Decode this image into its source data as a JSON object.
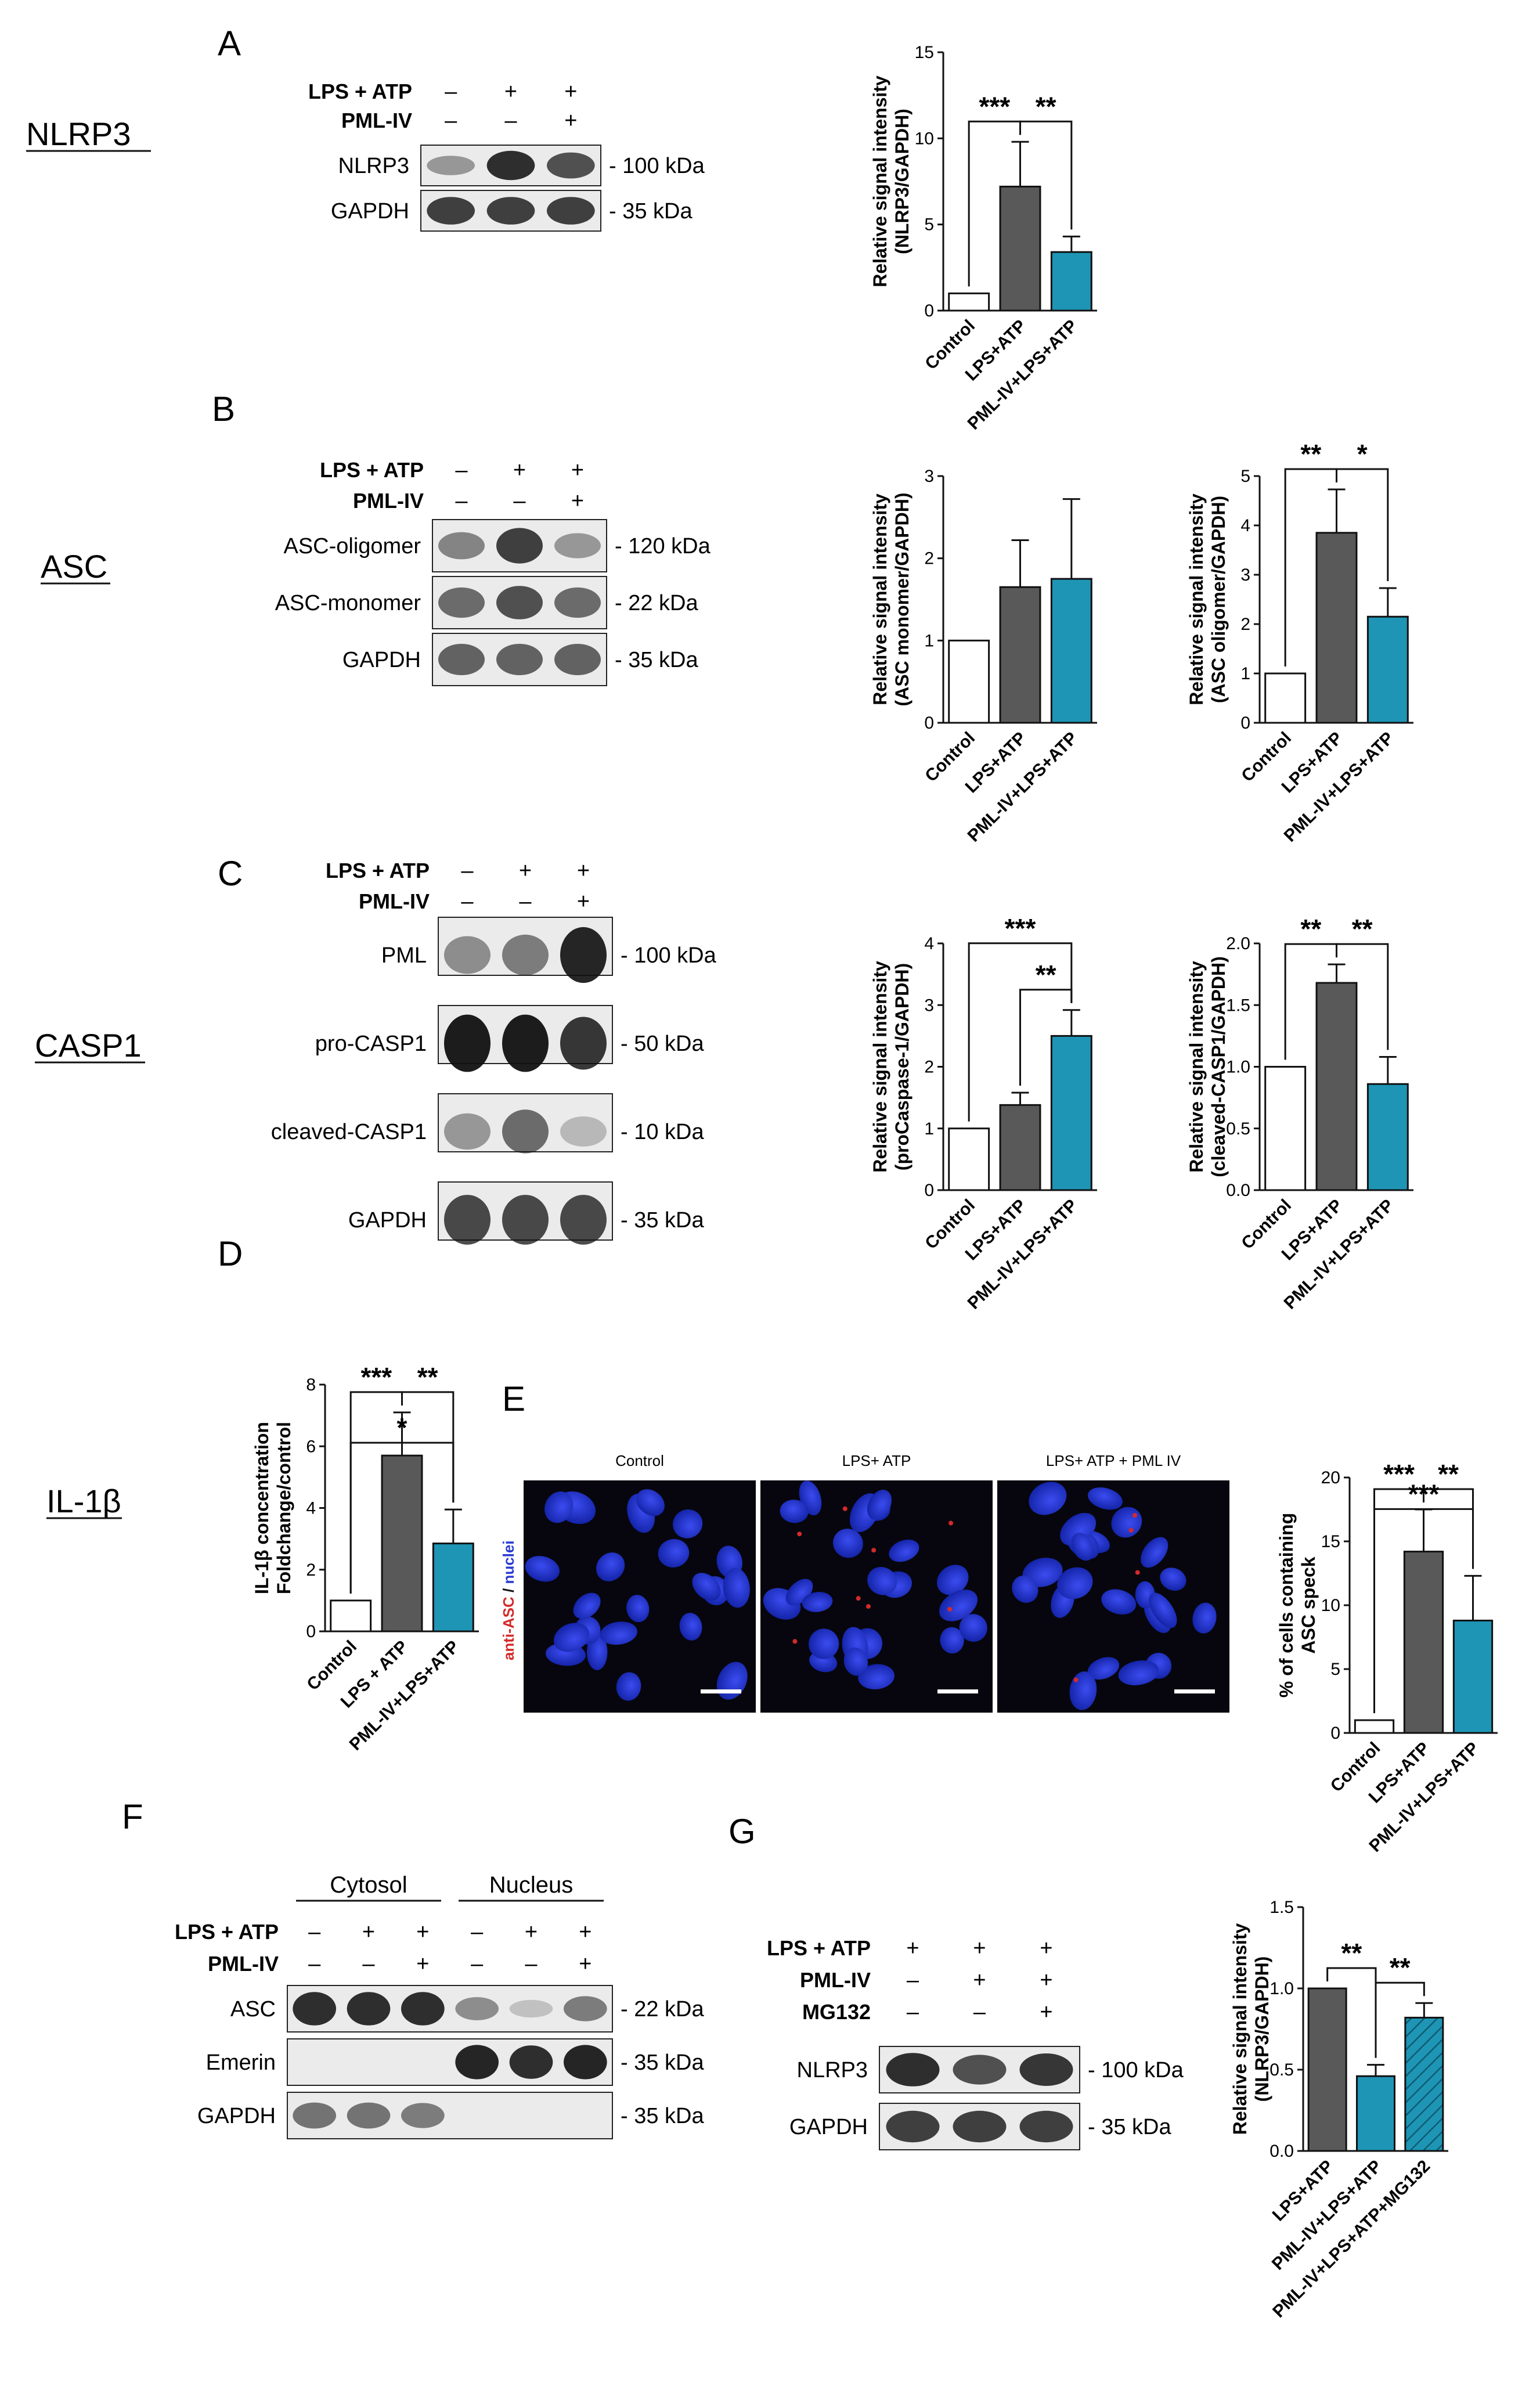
{
  "figure": {
    "row_labels": [
      {
        "key": "nlrp3",
        "text": "NLRP3"
      },
      {
        "key": "asc",
        "text": "ASC"
      },
      {
        "key": "casp1",
        "text": "CASP1"
      },
      {
        "key": "il1b",
        "text": "IL-1β"
      }
    ],
    "panel_letters": [
      "A",
      "B",
      "C",
      "D",
      "E",
      "F",
      "G"
    ]
  },
  "blots": {
    "A": {
      "conditions": [
        {
          "label": "LPS + ATP",
          "marks": [
            "–",
            "+",
            "+"
          ]
        },
        {
          "label": "PML-IV",
          "marks": [
            "–",
            "–",
            "+"
          ]
        }
      ],
      "bands": [
        {
          "protein": "NLRP3",
          "size": "- 100 kDa"
        },
        {
          "protein": "GAPDH",
          "size": "-  35 kDa"
        }
      ]
    },
    "B": {
      "conditions": [
        {
          "label": "LPS + ATP",
          "marks": [
            "–",
            "+",
            "+"
          ]
        },
        {
          "label": "PML-IV",
          "marks": [
            "–",
            "–",
            "+"
          ]
        }
      ],
      "bands": [
        {
          "protein": "ASC-oligomer",
          "size": "- 120 kDa"
        },
        {
          "protein": "ASC-monomer",
          "size": "-  22 kDa"
        },
        {
          "protein": "GAPDH",
          "size": "-  35 kDa"
        }
      ]
    },
    "C": {
      "conditions": [
        {
          "label": "LPS + ATP",
          "marks": [
            "–",
            "+",
            "+"
          ]
        },
        {
          "label": "PML-IV",
          "marks": [
            "–",
            "–",
            "+"
          ]
        }
      ],
      "bands": [
        {
          "protein": "PML",
          "size": "- 100 kDa"
        },
        {
          "protein": "pro-CASP1",
          "size": "- 50 kDa"
        },
        {
          "protein": "cleaved-CASP1",
          "size": "- 10 kDa"
        },
        {
          "protein": "GAPDH",
          "size": "- 35 kDa"
        }
      ]
    },
    "F": {
      "groups": [
        "Cytosol",
        "Nucleus"
      ],
      "conditions": [
        {
          "label": "LPS + ATP",
          "marks": [
            "–",
            "+",
            "+",
            "–",
            "+",
            "+"
          ]
        },
        {
          "label": "PML-IV",
          "marks": [
            "–",
            "–",
            "+",
            "–",
            "–",
            "+"
          ]
        }
      ],
      "bands": [
        {
          "protein": "ASC",
          "size": "- 22 kDa"
        },
        {
          "protein": "Emerin",
          "size": "- 35 kDa"
        },
        {
          "protein": "GAPDH",
          "size": "- 35 kDa"
        }
      ]
    },
    "G": {
      "conditions": [
        {
          "label": "LPS + ATP",
          "marks": [
            "+",
            "+",
            "+"
          ]
        },
        {
          "label": "PML-IV",
          "marks": [
            "–",
            "+",
            "+"
          ]
        },
        {
          "label": "MG132",
          "marks": [
            "–",
            "–",
            "+"
          ]
        }
      ],
      "bands": [
        {
          "protein": "NLRP3",
          "size": "- 100 kDa"
        },
        {
          "protein": "GAPDH",
          "size": "-  35 kDa"
        }
      ]
    }
  },
  "microscopy": {
    "titles": [
      "Control",
      "LPS+ ATP",
      "LPS+ ATP + PML IV"
    ],
    "stain_label_red": "anti-ASC",
    "stain_label_sep": " / ",
    "stain_label_blue": "nuclei"
  },
  "colors": {
    "control": "#ffffff",
    "lps_atp": "#595959",
    "pml_iv": "#1f95b5",
    "mg132_hatch": "#1f95b5",
    "stain_red": "#d42a2a",
    "stain_blue": "#2a3bd4"
  },
  "chart_data": [
    {
      "panel": "A",
      "type": "bar",
      "ylabel": "Relative signal intensity\n(NLRP3/GAPDH)",
      "categories": [
        "Control",
        "LPS+ATP",
        "PML-IV+LPS+ATP"
      ],
      "values": [
        1.0,
        7.2,
        3.4
      ],
      "errors": [
        0,
        2.6,
        0.9
      ],
      "ylim": [
        0,
        15
      ],
      "yticks": [
        0,
        5,
        10,
        15
      ],
      "significance": [
        {
          "from": 0,
          "to": 1,
          "label": "***"
        },
        {
          "from": 1,
          "to": 2,
          "label": "**"
        }
      ]
    },
    {
      "panel": "B1",
      "type": "bar",
      "ylabel": "Relative signal intensity\n(ASC monomer/GAPDH)",
      "categories": [
        "Control",
        "LPS+ATP",
        "PML-IV+LPS+ATP"
      ],
      "values": [
        1.0,
        1.65,
        1.75
      ],
      "errors": [
        0,
        0.57,
        0.97
      ],
      "ylim": [
        0,
        3
      ],
      "yticks": [
        0,
        1,
        2,
        3
      ],
      "significance": []
    },
    {
      "panel": "B2",
      "type": "bar",
      "ylabel": "Relative signal intensity\n(ASC oligomer/GAPDH)",
      "categories": [
        "Control",
        "LPS+ATP",
        "PML-IV+LPS+ATP"
      ],
      "values": [
        1.0,
        3.85,
        2.15
      ],
      "errors": [
        0,
        0.88,
        0.58
      ],
      "ylim": [
        0,
        5
      ],
      "yticks": [
        0,
        1,
        2,
        3,
        4,
        5
      ],
      "significance": [
        {
          "from": 0,
          "to": 1,
          "label": "**"
        },
        {
          "from": 1,
          "to": 2,
          "label": "*"
        }
      ]
    },
    {
      "panel": "C1",
      "type": "bar",
      "ylabel": "Relative signal intensity\n(proCaspase-1/GAPDH)",
      "categories": [
        "Control",
        "LPS+ATP",
        "PML-IV+LPS+ATP"
      ],
      "values": [
        1.0,
        1.38,
        2.5
      ],
      "errors": [
        0,
        0.2,
        0.42
      ],
      "ylim": [
        0,
        4
      ],
      "yticks": [
        0,
        1,
        2,
        3,
        4
      ],
      "significance": [
        {
          "from": 1,
          "to": 2,
          "label": "**"
        },
        {
          "from": 0,
          "to": 2,
          "label": "***"
        }
      ]
    },
    {
      "panel": "C2",
      "type": "bar",
      "ylabel": "Relative signal intensity\n(cleaved-CASP1/GAPDH)",
      "categories": [
        "Control",
        "LPS+ATP",
        "PML-IV+LPS+ATP"
      ],
      "values": [
        1.0,
        1.68,
        0.86
      ],
      "errors": [
        0,
        0.15,
        0.22
      ],
      "ylim": [
        0,
        2.0
      ],
      "yticks": [
        0,
        0.5,
        1.0,
        1.5,
        2.0
      ],
      "significance": [
        {
          "from": 0,
          "to": 1,
          "label": "**"
        },
        {
          "from": 1,
          "to": 2,
          "label": "**"
        }
      ]
    },
    {
      "panel": "D",
      "type": "bar",
      "ylabel": "IL-1β concentration\nFoldchange/control",
      "categories": [
        "Control",
        "LPS + ATP",
        "PML-IV+LPS+ATP"
      ],
      "values": [
        1.0,
        5.7,
        2.85
      ],
      "errors": [
        0,
        1.4,
        1.1
      ],
      "ylim": [
        0,
        8
      ],
      "yticks": [
        0,
        2,
        4,
        6,
        8
      ],
      "significance": [
        {
          "from": 0,
          "to": 1,
          "label": "***"
        },
        {
          "from": 1,
          "to": 2,
          "label": "**"
        },
        {
          "from": 0,
          "to": 2,
          "label": "*"
        }
      ]
    },
    {
      "panel": "E",
      "type": "bar",
      "ylabel": "% of cells containing\nASC speck",
      "categories": [
        "Control",
        "LPS+ATP",
        "PML-IV+LPS+ATP"
      ],
      "values": [
        1.0,
        14.2,
        8.8
      ],
      "errors": [
        0,
        3.3,
        3.5
      ],
      "ylim": [
        0,
        20
      ],
      "yticks": [
        0,
        5,
        10,
        15,
        20
      ],
      "significance": [
        {
          "from": 0,
          "to": 1,
          "label": "***"
        },
        {
          "from": 1,
          "to": 2,
          "label": "**"
        },
        {
          "from": 0,
          "to": 2,
          "label": "***"
        }
      ]
    },
    {
      "panel": "G",
      "type": "bar",
      "ylabel": "Relative signal intensity\n(NLRP3/GAPDH)",
      "categories": [
        "LPS+ATP",
        "PML-IV+LPS+ATP",
        "PML-IV+LPS+ATP+MG132"
      ],
      "values": [
        1.0,
        0.46,
        0.82
      ],
      "errors": [
        0,
        0.07,
        0.09
      ],
      "ylim": [
        0,
        1.5
      ],
      "yticks": [
        0,
        0.5,
        1.0,
        1.5
      ],
      "significance": [
        {
          "from": 0,
          "to": 1,
          "label": "**"
        },
        {
          "from": 1,
          "to": 2,
          "label": "**"
        }
      ]
    }
  ]
}
